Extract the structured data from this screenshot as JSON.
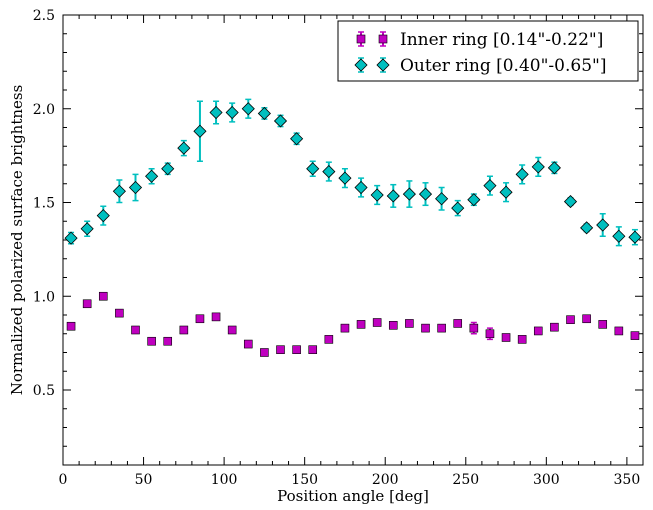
{
  "chart_data": {
    "type": "scatter",
    "title": "",
    "xlabel": "Position angle [deg]",
    "ylabel": "Normalized polarized surface brightness",
    "xlim": [
      0,
      360
    ],
    "ylim": [
      0.1,
      2.5
    ],
    "xticks": [
      0,
      50,
      100,
      150,
      200,
      250,
      300,
      350
    ],
    "yticks": [
      0.5,
      1.0,
      1.5,
      2.0,
      2.5
    ],
    "ytick_labels": [
      "0.5",
      "1.0",
      "1.5",
      "2.0",
      "2.5"
    ],
    "grid": false,
    "legend_position": "top-right",
    "series": [
      {
        "name": "Inner ring [0.14\"-0.22\"]",
        "marker": "square",
        "color": "#bf00bf",
        "x": [
          5,
          15,
          25,
          35,
          45,
          55,
          65,
          75,
          85,
          95,
          105,
          115,
          125,
          135,
          145,
          155,
          165,
          175,
          185,
          195,
          205,
          215,
          225,
          235,
          245,
          255,
          265,
          275,
          285,
          295,
          305,
          315,
          325,
          335,
          345,
          355
        ],
        "y": [
          0.84,
          0.96,
          1.0,
          0.91,
          0.82,
          0.76,
          0.76,
          0.82,
          0.88,
          0.89,
          0.82,
          0.745,
          0.7,
          0.715,
          0.715,
          0.715,
          0.77,
          0.83,
          0.85,
          0.86,
          0.845,
          0.855,
          0.83,
          0.83,
          0.855,
          0.83,
          0.8,
          0.78,
          0.77,
          0.815,
          0.835,
          0.875,
          0.88,
          0.85,
          0.815,
          0.79
        ],
        "err": [
          0.01,
          0.01,
          0.01,
          0.01,
          0.01,
          0.01,
          0.01,
          0.01,
          0.01,
          0.01,
          0.01,
          0.01,
          0.01,
          0.01,
          0.01,
          0.01,
          0.01,
          0.01,
          0.01,
          0.01,
          0.01,
          0.01,
          0.01,
          0.01,
          0.01,
          0.03,
          0.03,
          0.01,
          0.01,
          0.01,
          0.01,
          0.01,
          0.01,
          0.01,
          0.01,
          0.01
        ]
      },
      {
        "name": "Outer ring [0.40\"-0.65\"]",
        "marker": "diamond",
        "color": "#00bfbf",
        "x": [
          5,
          15,
          25,
          35,
          45,
          55,
          65,
          75,
          85,
          95,
          105,
          115,
          125,
          135,
          145,
          155,
          165,
          175,
          185,
          195,
          205,
          215,
          225,
          235,
          245,
          255,
          265,
          275,
          285,
          295,
          305,
          315,
          325,
          335,
          345,
          355
        ],
        "y": [
          1.31,
          1.36,
          1.43,
          1.56,
          1.58,
          1.64,
          1.68,
          1.79,
          1.88,
          1.98,
          1.98,
          2.0,
          1.975,
          1.935,
          1.84,
          1.68,
          1.665,
          1.63,
          1.58,
          1.54,
          1.535,
          1.545,
          1.545,
          1.52,
          1.47,
          1.515,
          1.59,
          1.555,
          1.65,
          1.69,
          1.685,
          1.505,
          1.365,
          1.38,
          1.32,
          1.315
        ],
        "err": [
          0.03,
          0.04,
          0.05,
          0.06,
          0.07,
          0.04,
          0.03,
          0.04,
          0.16,
          0.06,
          0.05,
          0.05,
          0.03,
          0.03,
          0.03,
          0.04,
          0.05,
          0.05,
          0.05,
          0.05,
          0.06,
          0.07,
          0.06,
          0.06,
          0.04,
          0.03,
          0.05,
          0.05,
          0.05,
          0.05,
          0.03,
          0.02,
          0.02,
          0.06,
          0.05,
          0.04
        ]
      }
    ]
  }
}
